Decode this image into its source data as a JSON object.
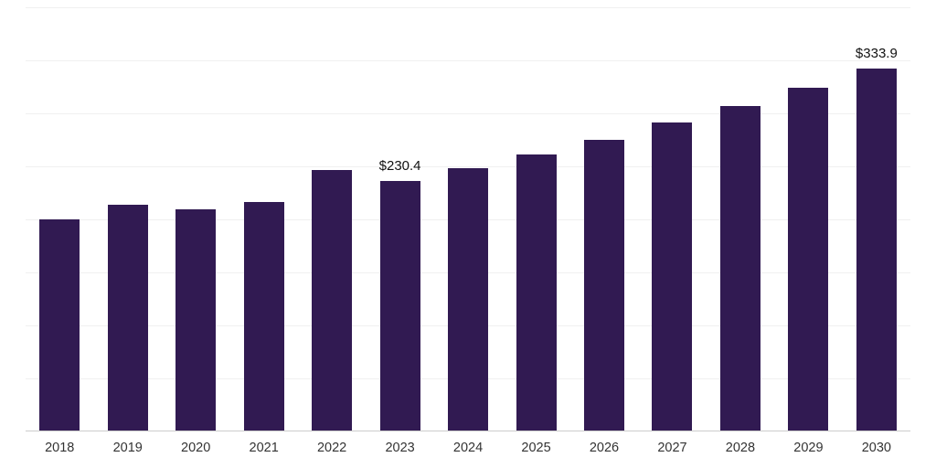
{
  "chart_data": {
    "type": "bar",
    "title": "",
    "xlabel": "",
    "ylabel": "",
    "categories": [
      "2018",
      "2019",
      "2020",
      "2021",
      "2022",
      "2023",
      "2024",
      "2025",
      "2026",
      "2027",
      "2028",
      "2029",
      "2030"
    ],
    "values": [
      194.9,
      208.6,
      204.5,
      211.3,
      240.8,
      230.4,
      242.1,
      254.9,
      268.2,
      284.0,
      298.9,
      315.8,
      333.9
    ],
    "value_labels": [
      "",
      "",
      "",
      "",
      "",
      "$230.4",
      "",
      "",
      "",
      "",
      "",
      "",
      "$333.9"
    ],
    "ylim": [
      0,
      390
    ],
    "grid": true,
    "gridline_divisions": 8,
    "legend_position": "none",
    "bar_color": "#311a52",
    "gridline_color": "#f0f0f0",
    "axis_line_color": "#cccccc",
    "tick_label_color": "#333333",
    "value_label_color": "#111111"
  }
}
